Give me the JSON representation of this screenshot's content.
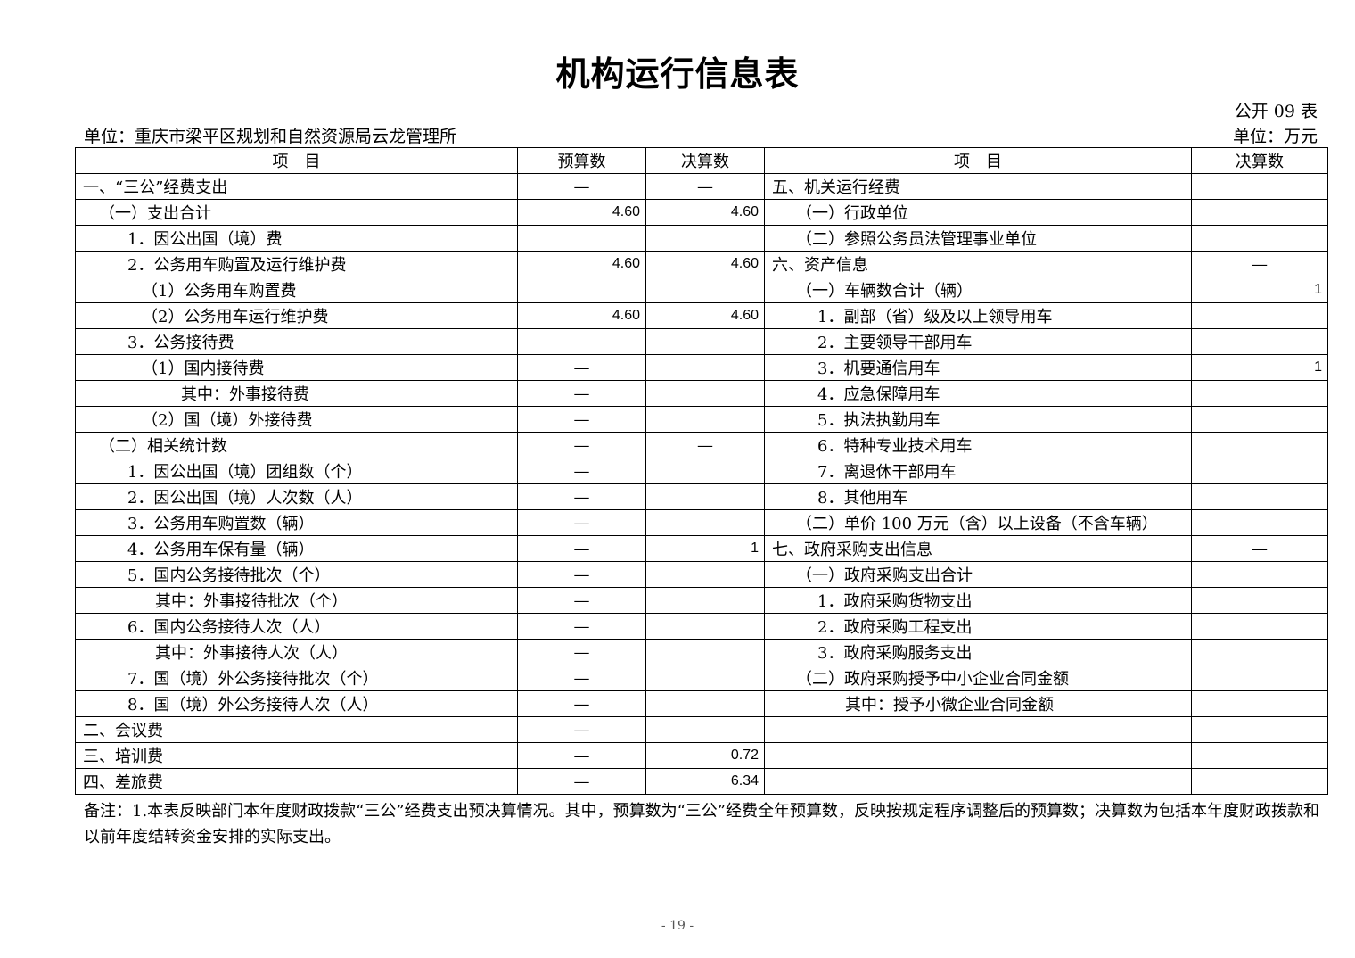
{
  "title": "机构运行信息表",
  "code": "公开 09 表",
  "unit_left": "单位：重庆市梁平区规划和自然资源局云龙管理所",
  "unit_right": "单位：万元",
  "headers": {
    "item_l": "项　目",
    "budget": "预算数",
    "final_l": "决算数",
    "item_r": "项　目",
    "final_r": "决算数"
  },
  "left_rows": [
    {
      "label": "一、“三公”经费支出",
      "level": 0,
      "budget": "—",
      "final": "—"
    },
    {
      "label": "（一）支出合计",
      "level": 1,
      "budget": "4.60",
      "final": "4.60"
    },
    {
      "label": "1．因公出国（境）费",
      "level": 2,
      "budget": "",
      "final": ""
    },
    {
      "label": "2．公务用车购置及运行维护费",
      "level": 2,
      "budget": "4.60",
      "final": "4.60"
    },
    {
      "label": "（1）公务用车购置费",
      "level": 3,
      "budget": "",
      "final": ""
    },
    {
      "label": "（2）公务用车运行维护费",
      "level": 3,
      "budget": "4.60",
      "final": "4.60"
    },
    {
      "label": "3．公务接待费",
      "level": 2,
      "budget": "",
      "final": ""
    },
    {
      "label": "（1）国内接待费",
      "level": 3,
      "budget": "—",
      "final": ""
    },
    {
      "label": "其中：外事接待费",
      "level": 4,
      "budget": "—",
      "final": ""
    },
    {
      "label": "（2）国（境）外接待费",
      "level": 3,
      "budget": "—",
      "final": ""
    },
    {
      "label": "（二）相关统计数",
      "level": 1,
      "budget": "—",
      "final": "—"
    },
    {
      "label": "1．因公出国（境）团组数（个）",
      "level": 2,
      "budget": "—",
      "final": ""
    },
    {
      "label": "2．因公出国（境）人次数（人）",
      "level": 2,
      "budget": "—",
      "final": ""
    },
    {
      "label": "3．公务用车购置数（辆）",
      "level": 2,
      "budget": "—",
      "final": ""
    },
    {
      "label": "4．公务用车保有量（辆）",
      "level": 2,
      "budget": "—",
      "final": "1"
    },
    {
      "label": "5．国内公务接待批次（个）",
      "level": 2,
      "budget": "—",
      "final": ""
    },
    {
      "label": "其中：外事接待批次（个）",
      "level": 5,
      "budget": "—",
      "final": ""
    },
    {
      "label": "6．国内公务接待人次（人）",
      "level": 2,
      "budget": "—",
      "final": ""
    },
    {
      "label": "其中：外事接待人次（人）",
      "level": 5,
      "budget": "—",
      "final": ""
    },
    {
      "label": "7．国（境）外公务接待批次（个）",
      "level": 2,
      "budget": "—",
      "final": ""
    },
    {
      "label": "8．国（境）外公务接待人次（人）",
      "level": 2,
      "budget": "—",
      "final": ""
    },
    {
      "label": "二、会议费",
      "level": 0,
      "budget": "—",
      "final": ""
    },
    {
      "label": "三、培训费",
      "level": 0,
      "budget": "—",
      "final": "0.72"
    },
    {
      "label": "四、差旅费",
      "level": 0,
      "budget": "—",
      "final": "6.34"
    }
  ],
  "right_rows": [
    {
      "label": "五、机关运行经费",
      "level": 0,
      "final": ""
    },
    {
      "label": "（一）行政单位",
      "level": 1,
      "final": ""
    },
    {
      "label": "（二）参照公务员法管理事业单位",
      "level": 1,
      "final": ""
    },
    {
      "label": "六、资产信息",
      "level": 0,
      "final": "—"
    },
    {
      "label": "（一）车辆数合计（辆）",
      "level": 1,
      "final": "1"
    },
    {
      "label": "1．副部（省）级及以上领导用车",
      "level": 2,
      "final": ""
    },
    {
      "label": "2．主要领导干部用车",
      "level": 2,
      "final": ""
    },
    {
      "label": "3．机要通信用车",
      "level": 2,
      "final": "1"
    },
    {
      "label": "4．应急保障用车",
      "level": 2,
      "final": ""
    },
    {
      "label": "5．执法执勤用车",
      "level": 2,
      "final": ""
    },
    {
      "label": "6．特种专业技术用车",
      "level": 2,
      "final": ""
    },
    {
      "label": "7．离退休干部用车",
      "level": 2,
      "final": ""
    },
    {
      "label": "8．其他用车",
      "level": 2,
      "final": ""
    },
    {
      "label": "（二）单价 100 万元（含）以上设备（不含车辆）",
      "level": 1,
      "final": ""
    },
    {
      "label": "七、政府采购支出信息",
      "level": 0,
      "final": "—"
    },
    {
      "label": "（一）政府采购支出合计",
      "level": 1,
      "final": ""
    },
    {
      "label": "1．政府采购货物支出",
      "level": 2,
      "final": ""
    },
    {
      "label": "2．政府采购工程支出",
      "level": 2,
      "final": ""
    },
    {
      "label": "3．政府采购服务支出",
      "level": 2,
      "final": ""
    },
    {
      "label": "（二）政府采购授予中小企业合同金额",
      "level": 1,
      "final": ""
    },
    {
      "label": "其中：授予小微企业合同金额",
      "level": 4,
      "final": ""
    },
    {
      "label": "",
      "level": 0,
      "final": ""
    },
    {
      "label": "",
      "level": 0,
      "final": ""
    },
    {
      "label": "",
      "level": 0,
      "final": ""
    }
  ],
  "note": "备注：1.本表反映部门本年度财政拨款“三公”经费支出预决算情况。其中，预算数为“三公”经费全年预算数，反映按规定程序调整后的预算数；决算数为包括本年度财政拨款和以前年度结转资金安排的实际支出。",
  "page_number": "- 19 -"
}
